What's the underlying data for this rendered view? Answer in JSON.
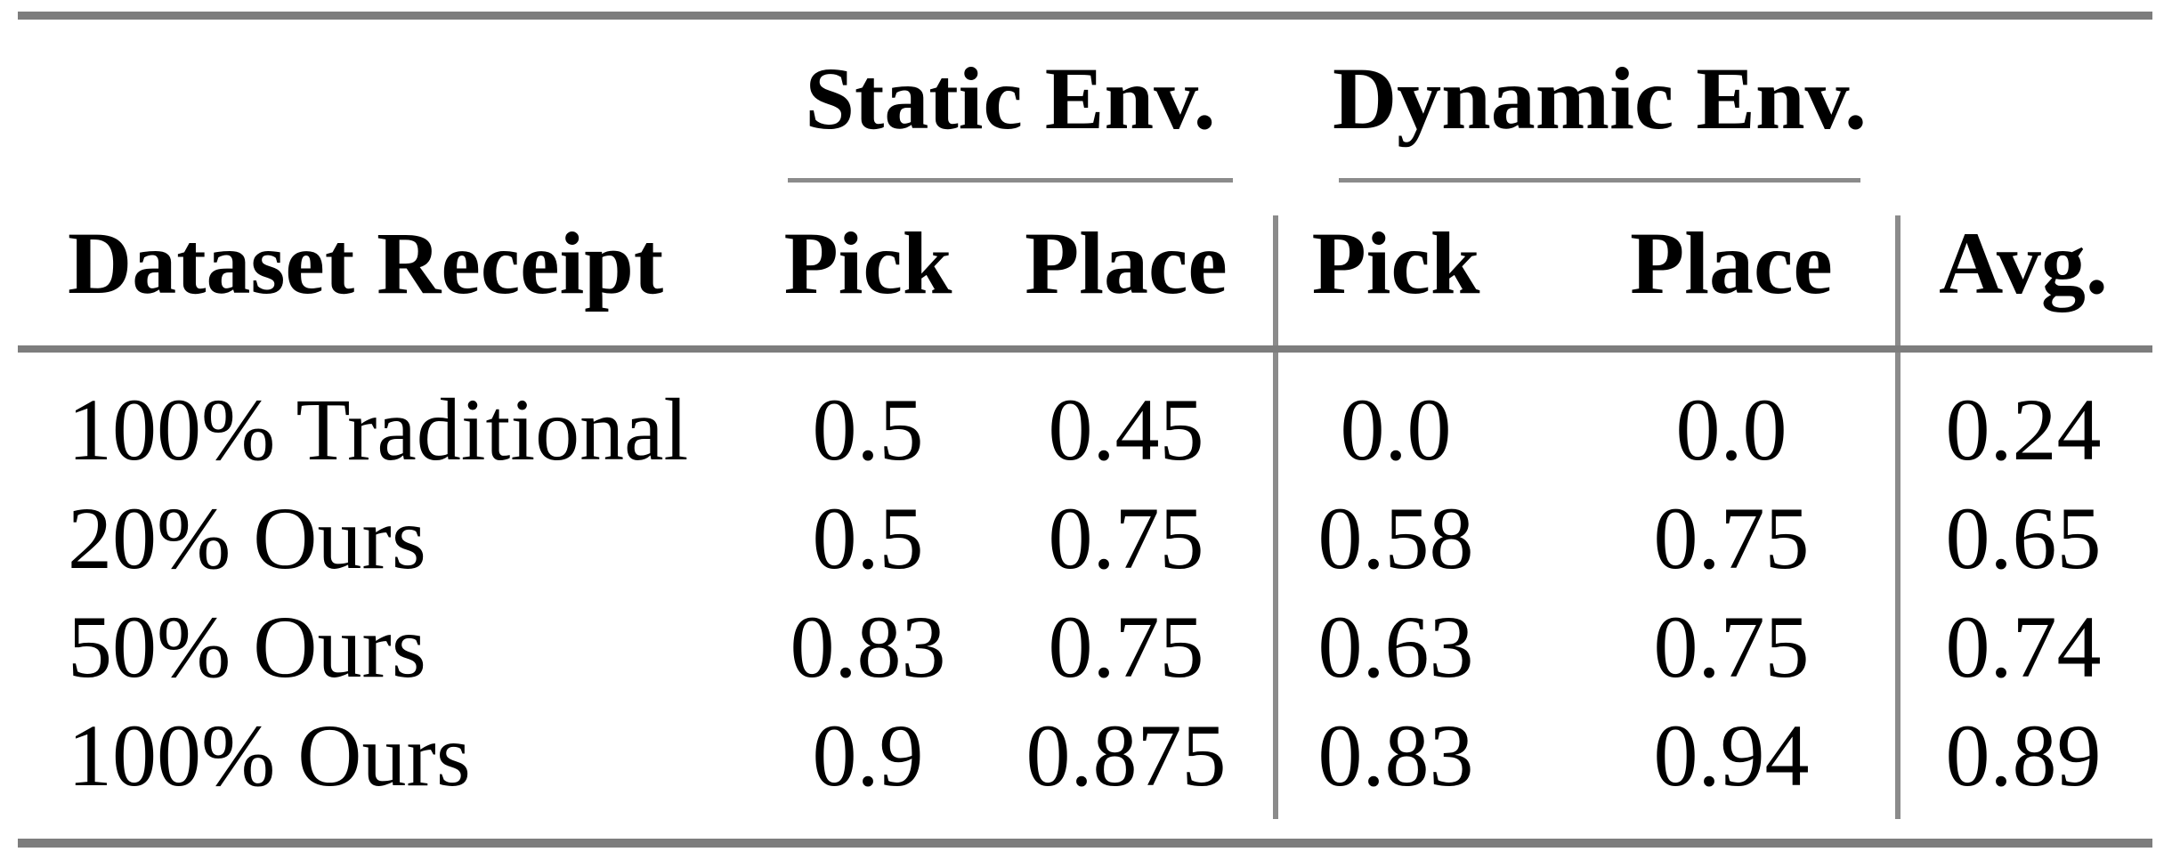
{
  "table": {
    "group_headers": {
      "static": "Static Env.",
      "dynamic": "Dynamic Env."
    },
    "column_headers": {
      "row_label": "Dataset Receipt",
      "static_pick": "Pick",
      "static_place": "Place",
      "dynamic_pick": "Pick",
      "dynamic_place": "Place",
      "avg": "Avg."
    },
    "rows": [
      {
        "label": "100% Traditional",
        "values": [
          "0.5",
          "0.45",
          "0.0",
          "0.0",
          "0.24"
        ]
      },
      {
        "label": "20% Ours",
        "values": [
          "0.5",
          "0.75",
          "0.58",
          "0.75",
          "0.65"
        ]
      },
      {
        "label": "50% Ours",
        "values": [
          "0.83",
          "0.75",
          "0.63",
          "0.75",
          "0.74"
        ]
      },
      {
        "label": "100% Ours",
        "values": [
          "0.9",
          "0.875",
          "0.83",
          "0.94",
          "0.89"
        ]
      }
    ],
    "colors": {
      "heavy_rule": "#7d7d7d",
      "light_rule": "#8b8b8b",
      "text": "#000000",
      "background": "#ffffff"
    }
  }
}
